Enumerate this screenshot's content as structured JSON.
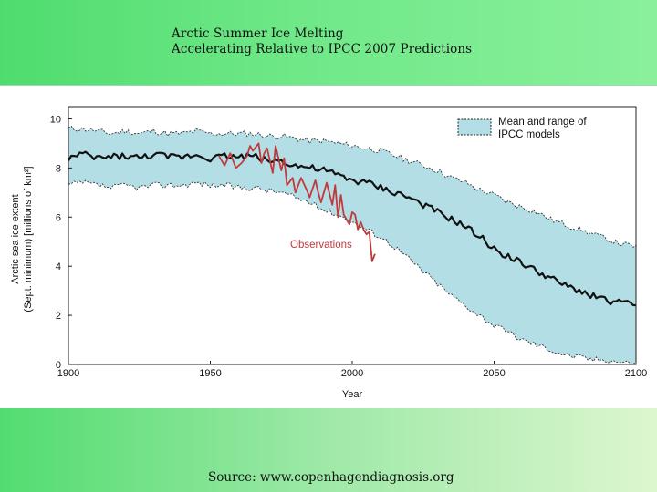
{
  "slide": {
    "title_line1": "Arctic Summer Ice Melting",
    "title_line2": "Accelerating Relative to IPCC 2007 Predictions",
    "source": "Source: www.copenhagendiagnosis.org",
    "colors": {
      "band_green": "#5fe27c",
      "band_light": "#ddf6cf"
    }
  },
  "chart_data": {
    "type": "line",
    "xlabel": "Year",
    "ylabel_line1": "Arctic sea ice extent",
    "ylabel_line2": "(Sept. minimum) [millions of km²]",
    "xlim": [
      1900,
      2100
    ],
    "ylim": [
      0,
      10.5
    ],
    "x_ticks": [
      1900,
      1950,
      2000,
      2050,
      2100
    ],
    "y_ticks": [
      0,
      2,
      4,
      6,
      8,
      10
    ],
    "legend": {
      "label_line1": "Mean and range of",
      "label_line2": "IPCC models",
      "position": "top-right"
    },
    "annotation": "Observations",
    "colors": {
      "band": "#b4dee6",
      "band_edge": "#333333",
      "mean": "#111111",
      "observations": "#c0393b"
    },
    "series": [
      {
        "name": "IPCC model mean",
        "x": [
          1900,
          1905,
          1910,
          1915,
          1920,
          1925,
          1930,
          1935,
          1940,
          1945,
          1950,
          1955,
          1960,
          1965,
          1970,
          1975,
          1980,
          1985,
          1990,
          1995,
          2000,
          2005,
          2010,
          2015,
          2020,
          2025,
          2030,
          2035,
          2040,
          2045,
          2050,
          2055,
          2060,
          2065,
          2070,
          2075,
          2080,
          2085,
          2090,
          2095,
          2100
        ],
        "values": [
          8.4,
          8.55,
          8.4,
          8.45,
          8.5,
          8.4,
          8.55,
          8.45,
          8.45,
          8.55,
          8.4,
          8.5,
          8.45,
          8.5,
          8.3,
          8.3,
          8.1,
          8.0,
          7.9,
          7.7,
          7.5,
          7.4,
          7.2,
          7.0,
          6.8,
          6.5,
          6.2,
          5.9,
          5.6,
          5.2,
          4.7,
          4.4,
          4.1,
          3.8,
          3.5,
          3.2,
          3.0,
          2.8,
          2.6,
          2.5,
          2.4
        ]
      },
      {
        "name": "IPCC range upper",
        "x": [
          1900,
          1905,
          1910,
          1915,
          1920,
          1925,
          1930,
          1935,
          1940,
          1945,
          1950,
          1955,
          1960,
          1965,
          1970,
          1975,
          1980,
          1985,
          1990,
          1995,
          2000,
          2005,
          2010,
          2015,
          2020,
          2025,
          2030,
          2035,
          2040,
          2045,
          2050,
          2055,
          2060,
          2065,
          2070,
          2075,
          2080,
          2085,
          2090,
          2095,
          2100
        ],
        "values": [
          9.6,
          9.6,
          9.5,
          9.4,
          9.5,
          9.4,
          9.5,
          9.4,
          9.4,
          9.5,
          9.4,
          9.4,
          9.4,
          9.4,
          9.3,
          9.3,
          9.2,
          9.1,
          9.1,
          9.0,
          8.9,
          8.8,
          8.7,
          8.5,
          8.3,
          8.1,
          7.9,
          7.6,
          7.4,
          7.1,
          6.9,
          6.6,
          6.4,
          6.2,
          5.9,
          5.7,
          5.5,
          5.3,
          5.1,
          4.9,
          4.8
        ]
      },
      {
        "name": "IPCC range lower",
        "x": [
          1900,
          1905,
          1910,
          1915,
          1920,
          1925,
          1930,
          1935,
          1940,
          1945,
          1950,
          1955,
          1960,
          1965,
          1970,
          1975,
          1980,
          1985,
          1990,
          1995,
          2000,
          2005,
          2010,
          2015,
          2020,
          2025,
          2030,
          2035,
          2040,
          2045,
          2050,
          2055,
          2060,
          2065,
          2070,
          2075,
          2080,
          2085,
          2090,
          2095,
          2100
        ],
        "values": [
          7.3,
          7.4,
          7.3,
          7.2,
          7.3,
          7.2,
          7.3,
          7.3,
          7.3,
          7.4,
          7.3,
          7.3,
          7.2,
          7.2,
          7.1,
          7.0,
          6.8,
          6.6,
          6.3,
          6.1,
          5.8,
          5.5,
          5.2,
          4.8,
          4.3,
          3.8,
          3.3,
          2.8,
          2.4,
          2.0,
          1.6,
          1.3,
          1.0,
          0.8,
          0.6,
          0.4,
          0.3,
          0.2,
          0.2,
          0.1,
          0.05
        ]
      },
      {
        "name": "Observations",
        "x": [
          1953,
          1955,
          1957,
          1959,
          1961,
          1963,
          1964,
          1965,
          1967,
          1968,
          1969,
          1970,
          1972,
          1973,
          1975,
          1976,
          1977,
          1979,
          1980,
          1982,
          1984,
          1985,
          1987,
          1988,
          1989,
          1991,
          1993,
          1994,
          1995,
          1996,
          1997,
          1999,
          2000,
          2001,
          2002,
          2003,
          2004,
          2005,
          2006,
          2007,
          2008
        ],
        "values": [
          8.5,
          8.1,
          8.6,
          8.0,
          8.2,
          8.5,
          8.9,
          8.7,
          9.0,
          8.2,
          8.6,
          8.8,
          7.8,
          8.9,
          7.9,
          8.4,
          7.3,
          7.6,
          7.0,
          7.6,
          7.1,
          6.8,
          7.5,
          7.0,
          6.6,
          7.4,
          6.5,
          7.3,
          6.0,
          6.9,
          6.1,
          5.7,
          6.2,
          6.1,
          5.5,
          5.8,
          5.5,
          5.3,
          5.4,
          4.2,
          4.5
        ]
      }
    ]
  }
}
